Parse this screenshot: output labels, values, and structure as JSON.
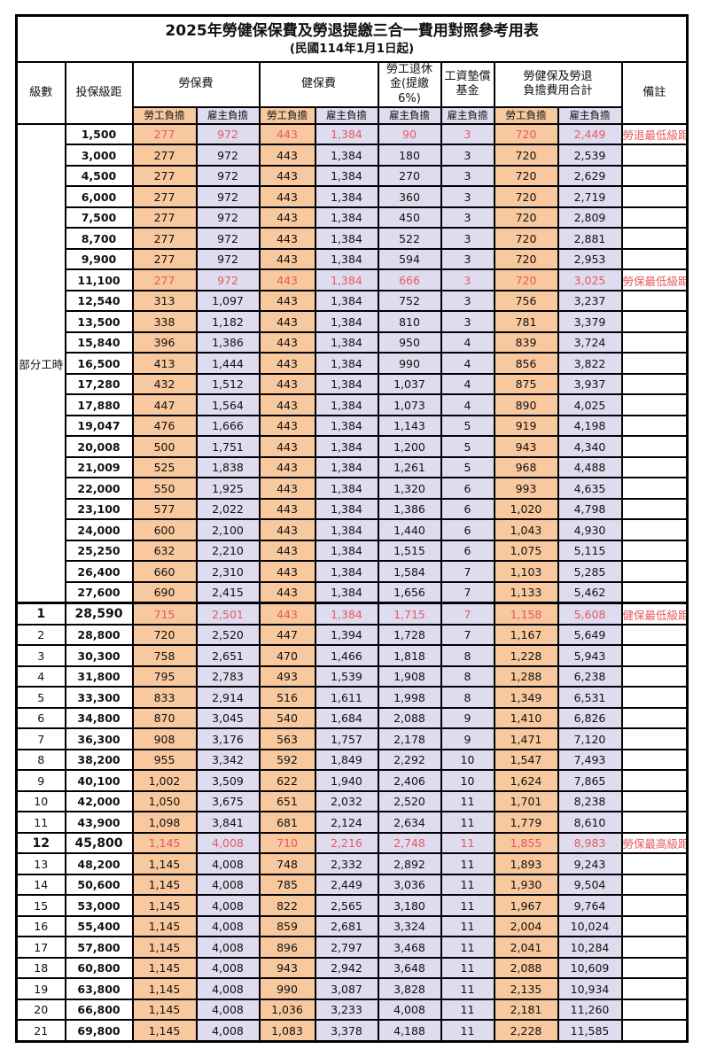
{
  "title": "2025年勞健保保費及勞退提繳三合一費用對照參考用表",
  "subtitle": "(民國114年1月1日起)",
  "header": {
    "level": "級數",
    "salary": "投保級距",
    "labor_ins": "勞保費",
    "health_ins": "健保費",
    "pension": "勞工退休\n金(提繳6%)",
    "wage_fund": "工資墊償\n基金",
    "total": "勞健保及勞退\n負擔費用合計",
    "remark": "備註",
    "employee": "勞工負擔",
    "employer": "雇主負擔"
  },
  "part_time_label": "部分工時",
  "part_time_row_count": 23,
  "colors": {
    "employee_bg": "#F8C89E",
    "employer_bg": "#DEDCEE",
    "highlight_text": "#E55A62",
    "grid": "#000000"
  },
  "row_columns": [
    "level",
    "salary",
    "labor_emp",
    "labor_er",
    "health_emp",
    "health_er",
    "pension_er",
    "fund_er",
    "total_emp",
    "total_er",
    "remark",
    "flags"
  ],
  "rows": [
    [
      "",
      "1,500",
      "277",
      "972",
      "443",
      "1,384",
      "90",
      "3",
      "720",
      "2,449",
      "勞退最低級距",
      "r"
    ],
    [
      "",
      "3,000",
      "277",
      "972",
      "443",
      "1,384",
      "180",
      "3",
      "720",
      "2,539",
      "",
      ""
    ],
    [
      "",
      "4,500",
      "277",
      "972",
      "443",
      "1,384",
      "270",
      "3",
      "720",
      "2,629",
      "",
      ""
    ],
    [
      "",
      "6,000",
      "277",
      "972",
      "443",
      "1,384",
      "360",
      "3",
      "720",
      "2,719",
      "",
      ""
    ],
    [
      "",
      "7,500",
      "277",
      "972",
      "443",
      "1,384",
      "450",
      "3",
      "720",
      "2,809",
      "",
      ""
    ],
    [
      "",
      "8,700",
      "277",
      "972",
      "443",
      "1,384",
      "522",
      "3",
      "720",
      "2,881",
      "",
      ""
    ],
    [
      "",
      "9,900",
      "277",
      "972",
      "443",
      "1,384",
      "594",
      "3",
      "720",
      "2,953",
      "",
      ""
    ],
    [
      "",
      "11,100",
      "277",
      "972",
      "443",
      "1,384",
      "666",
      "3",
      "720",
      "3,025",
      "勞保最低級距",
      "r"
    ],
    [
      "",
      "12,540",
      "313",
      "1,097",
      "443",
      "1,384",
      "752",
      "3",
      "756",
      "3,237",
      "",
      ""
    ],
    [
      "",
      "13,500",
      "338",
      "1,182",
      "443",
      "1,384",
      "810",
      "3",
      "781",
      "3,379",
      "",
      ""
    ],
    [
      "",
      "15,840",
      "396",
      "1,386",
      "443",
      "1,384",
      "950",
      "4",
      "839",
      "3,724",
      "",
      ""
    ],
    [
      "",
      "16,500",
      "413",
      "1,444",
      "443",
      "1,384",
      "990",
      "4",
      "856",
      "3,822",
      "",
      ""
    ],
    [
      "",
      "17,280",
      "432",
      "1,512",
      "443",
      "1,384",
      "1,037",
      "4",
      "875",
      "3,937",
      "",
      ""
    ],
    [
      "",
      "17,880",
      "447",
      "1,564",
      "443",
      "1,384",
      "1,073",
      "4",
      "890",
      "4,025",
      "",
      ""
    ],
    [
      "",
      "19,047",
      "476",
      "1,666",
      "443",
      "1,384",
      "1,143",
      "5",
      "919",
      "4,198",
      "",
      ""
    ],
    [
      "",
      "20,008",
      "500",
      "1,751",
      "443",
      "1,384",
      "1,200",
      "5",
      "943",
      "4,340",
      "",
      ""
    ],
    [
      "",
      "21,009",
      "525",
      "1,838",
      "443",
      "1,384",
      "1,261",
      "5",
      "968",
      "4,488",
      "",
      ""
    ],
    [
      "",
      "22,000",
      "550",
      "1,925",
      "443",
      "1,384",
      "1,320",
      "6",
      "993",
      "4,635",
      "",
      ""
    ],
    [
      "",
      "23,100",
      "577",
      "2,022",
      "443",
      "1,384",
      "1,386",
      "6",
      "1,020",
      "4,798",
      "",
      ""
    ],
    [
      "",
      "24,000",
      "600",
      "2,100",
      "443",
      "1,384",
      "1,440",
      "6",
      "1,043",
      "4,930",
      "",
      ""
    ],
    [
      "",
      "25,250",
      "632",
      "2,210",
      "443",
      "1,384",
      "1,515",
      "6",
      "1,075",
      "5,115",
      "",
      ""
    ],
    [
      "",
      "26,400",
      "660",
      "2,310",
      "443",
      "1,384",
      "1,584",
      "7",
      "1,103",
      "5,285",
      "",
      ""
    ],
    [
      "",
      "27,600",
      "690",
      "2,415",
      "443",
      "1,384",
      "1,656",
      "7",
      "1,133",
      "5,462",
      "",
      ""
    ],
    [
      "1",
      "28,590",
      "715",
      "2,501",
      "443",
      "1,384",
      "1,715",
      "7",
      "1,158",
      "5,608",
      "健保最低級距",
      "rbs"
    ],
    [
      "2",
      "28,800",
      "720",
      "2,520",
      "447",
      "1,394",
      "1,728",
      "7",
      "1,167",
      "5,649",
      "",
      ""
    ],
    [
      "3",
      "30,300",
      "758",
      "2,651",
      "470",
      "1,466",
      "1,818",
      "8",
      "1,228",
      "5,943",
      "",
      ""
    ],
    [
      "4",
      "31,800",
      "795",
      "2,783",
      "493",
      "1,539",
      "1,908",
      "8",
      "1,288",
      "6,238",
      "",
      ""
    ],
    [
      "5",
      "33,300",
      "833",
      "2,914",
      "516",
      "1,611",
      "1,998",
      "8",
      "1,349",
      "6,531",
      "",
      ""
    ],
    [
      "6",
      "34,800",
      "870",
      "3,045",
      "540",
      "1,684",
      "2,088",
      "9",
      "1,410",
      "6,826",
      "",
      ""
    ],
    [
      "7",
      "36,300",
      "908",
      "3,176",
      "563",
      "1,757",
      "2,178",
      "9",
      "1,471",
      "7,120",
      "",
      ""
    ],
    [
      "8",
      "38,200",
      "955",
      "3,342",
      "592",
      "1,849",
      "2,292",
      "10",
      "1,547",
      "7,493",
      "",
      ""
    ],
    [
      "9",
      "40,100",
      "1,002",
      "3,509",
      "622",
      "1,940",
      "2,406",
      "10",
      "1,624",
      "7,865",
      "",
      ""
    ],
    [
      "10",
      "42,000",
      "1,050",
      "3,675",
      "651",
      "2,032",
      "2,520",
      "11",
      "1,701",
      "8,238",
      "",
      ""
    ],
    [
      "11",
      "43,900",
      "1,098",
      "3,841",
      "681",
      "2,124",
      "2,634",
      "11",
      "1,779",
      "8,610",
      "",
      ""
    ],
    [
      "12",
      "45,800",
      "1,145",
      "4,008",
      "710",
      "2,216",
      "2,748",
      "11",
      "1,855",
      "8,983",
      "勞保最高級距",
      "rb"
    ],
    [
      "13",
      "48,200",
      "1,145",
      "4,008",
      "748",
      "2,332",
      "2,892",
      "11",
      "1,893",
      "9,243",
      "",
      ""
    ],
    [
      "14",
      "50,600",
      "1,145",
      "4,008",
      "785",
      "2,449",
      "3,036",
      "11",
      "1,930",
      "9,504",
      "",
      ""
    ],
    [
      "15",
      "53,000",
      "1,145",
      "4,008",
      "822",
      "2,565",
      "3,180",
      "11",
      "1,967",
      "9,764",
      "",
      ""
    ],
    [
      "16",
      "55,400",
      "1,145",
      "4,008",
      "859",
      "2,681",
      "3,324",
      "11",
      "2,004",
      "10,024",
      "",
      ""
    ],
    [
      "17",
      "57,800",
      "1,145",
      "4,008",
      "896",
      "2,797",
      "3,468",
      "11",
      "2,041",
      "10,284",
      "",
      ""
    ],
    [
      "18",
      "60,800",
      "1,145",
      "4,008",
      "943",
      "2,942",
      "3,648",
      "11",
      "2,088",
      "10,609",
      "",
      ""
    ],
    [
      "19",
      "63,800",
      "1,145",
      "4,008",
      "990",
      "3,087",
      "3,828",
      "11",
      "2,135",
      "10,934",
      "",
      ""
    ],
    [
      "20",
      "66,800",
      "1,145",
      "4,008",
      "1,036",
      "3,233",
      "4,008",
      "11",
      "2,181",
      "11,260",
      "",
      ""
    ],
    [
      "21",
      "69,800",
      "1,145",
      "4,008",
      "1,083",
      "3,378",
      "4,188",
      "11",
      "2,228",
      "11,585",
      "",
      ""
    ]
  ]
}
